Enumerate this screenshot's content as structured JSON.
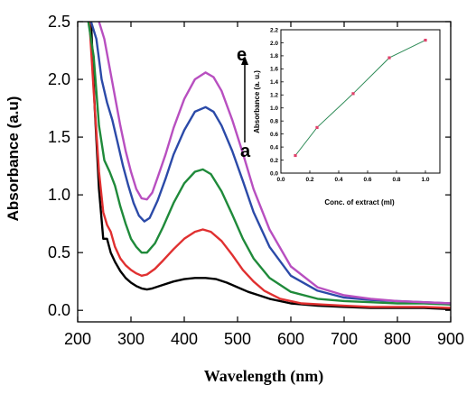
{
  "chart_data": [
    {
      "type": "line",
      "title": "",
      "xlabel": "Wavelength (nm)",
      "ylabel": "Absorbance (a.u)",
      "xlim": [
        200,
        900
      ],
      "ylim": [
        -0.1,
        2.5
      ],
      "x_ticks": [
        "200",
        "300",
        "400",
        "500",
        "600",
        "700",
        "800",
        "900"
      ],
      "y_ticks": [
        "0.0",
        "0.5",
        "1.0",
        "1.5",
        "2.0",
        "2.5"
      ],
      "grid": false,
      "curve_labels": [
        "a",
        "e"
      ],
      "series": [
        {
          "color": "#000000",
          "x": [
            225,
            232,
            240,
            248,
            255,
            262,
            270,
            280,
            290,
            300,
            310,
            320,
            330,
            340,
            360,
            380,
            400,
            420,
            440,
            460,
            480,
            500,
            520,
            540,
            560,
            600,
            650,
            700,
            750,
            800,
            850,
            900
          ],
          "values": [
            2.5,
            1.75,
            1.05,
            0.62,
            0.62,
            0.5,
            0.42,
            0.34,
            0.28,
            0.24,
            0.21,
            0.19,
            0.18,
            0.19,
            0.22,
            0.25,
            0.27,
            0.28,
            0.28,
            0.27,
            0.24,
            0.2,
            0.16,
            0.13,
            0.1,
            0.06,
            0.04,
            0.03,
            0.02,
            0.02,
            0.02,
            0.01
          ]
        },
        {
          "color": "#e03030",
          "x": [
            222,
            230,
            240,
            248,
            255,
            262,
            270,
            280,
            290,
            300,
            310,
            320,
            330,
            345,
            360,
            380,
            400,
            420,
            435,
            450,
            470,
            490,
            510,
            530,
            550,
            580,
            620,
            660,
            700,
            750,
            800,
            850,
            900
          ],
          "values": [
            2.5,
            1.9,
            1.2,
            0.85,
            0.74,
            0.68,
            0.55,
            0.45,
            0.39,
            0.35,
            0.32,
            0.3,
            0.31,
            0.36,
            0.43,
            0.53,
            0.62,
            0.68,
            0.7,
            0.68,
            0.6,
            0.48,
            0.35,
            0.25,
            0.17,
            0.1,
            0.06,
            0.05,
            0.04,
            0.03,
            0.03,
            0.03,
            0.02
          ]
        },
        {
          "color": "#1f8a3a",
          "x": [
            220,
            230,
            240,
            250,
            260,
            270,
            280,
            290,
            300,
            310,
            320,
            330,
            345,
            360,
            380,
            400,
            420,
            435,
            450,
            470,
            490,
            510,
            530,
            560,
            600,
            650,
            700,
            750,
            800,
            850,
            900
          ],
          "values": [
            2.5,
            2.2,
            1.6,
            1.3,
            1.2,
            1.08,
            0.9,
            0.75,
            0.62,
            0.55,
            0.5,
            0.5,
            0.58,
            0.72,
            0.93,
            1.1,
            1.2,
            1.22,
            1.18,
            1.03,
            0.83,
            0.62,
            0.45,
            0.28,
            0.16,
            0.1,
            0.08,
            0.07,
            0.06,
            0.06,
            0.05
          ]
        },
        {
          "color": "#2b4aa8",
          "x": [
            225,
            235,
            245,
            255,
            265,
            275,
            285,
            295,
            305,
            315,
            325,
            335,
            350,
            365,
            380,
            400,
            420,
            440,
            455,
            470,
            490,
            510,
            530,
            560,
            600,
            650,
            700,
            750,
            800,
            850,
            900
          ],
          "values": [
            2.5,
            2.35,
            2.0,
            1.8,
            1.65,
            1.45,
            1.25,
            1.08,
            0.93,
            0.82,
            0.77,
            0.8,
            0.95,
            1.14,
            1.35,
            1.56,
            1.72,
            1.76,
            1.72,
            1.6,
            1.38,
            1.12,
            0.85,
            0.55,
            0.3,
            0.17,
            0.11,
            0.09,
            0.08,
            0.07,
            0.06
          ]
        },
        {
          "color": "#b84fc0",
          "x": [
            240,
            250,
            260,
            270,
            280,
            290,
            300,
            310,
            320,
            330,
            340,
            350,
            365,
            380,
            400,
            420,
            440,
            455,
            470,
            490,
            510,
            530,
            560,
            600,
            650,
            700,
            750,
            800,
            850,
            900
          ],
          "values": [
            2.5,
            2.35,
            2.1,
            1.85,
            1.6,
            1.38,
            1.2,
            1.05,
            0.97,
            0.96,
            1.02,
            1.15,
            1.35,
            1.58,
            1.83,
            2.0,
            2.06,
            2.02,
            1.9,
            1.65,
            1.36,
            1.05,
            0.7,
            0.38,
            0.2,
            0.13,
            0.1,
            0.08,
            0.07,
            0.06
          ]
        }
      ]
    },
    {
      "type": "line",
      "title": "",
      "xlabel": "Conc. of extract (ml)",
      "ylabel": "Absorbance (a. u.)",
      "xlim": [
        0.0,
        1.1
      ],
      "ylim": [
        0.0,
        2.2
      ],
      "x_ticks": [
        "0.0",
        "0.2",
        "0.4",
        "0.6",
        "0.8",
        "1.0"
      ],
      "y_ticks": [
        "0.0",
        "0.2",
        "0.4",
        "0.6",
        "0.8",
        "1.0",
        "1.2",
        "1.4",
        "1.6",
        "1.8",
        "2.0",
        "2.2"
      ],
      "grid": false,
      "line_color": "#2e8b57",
      "marker_color": "#e0406a",
      "x": [
        0.1,
        0.25,
        0.5,
        0.75,
        1.0
      ],
      "values": [
        0.27,
        0.7,
        1.22,
        1.77,
        2.04
      ]
    }
  ]
}
